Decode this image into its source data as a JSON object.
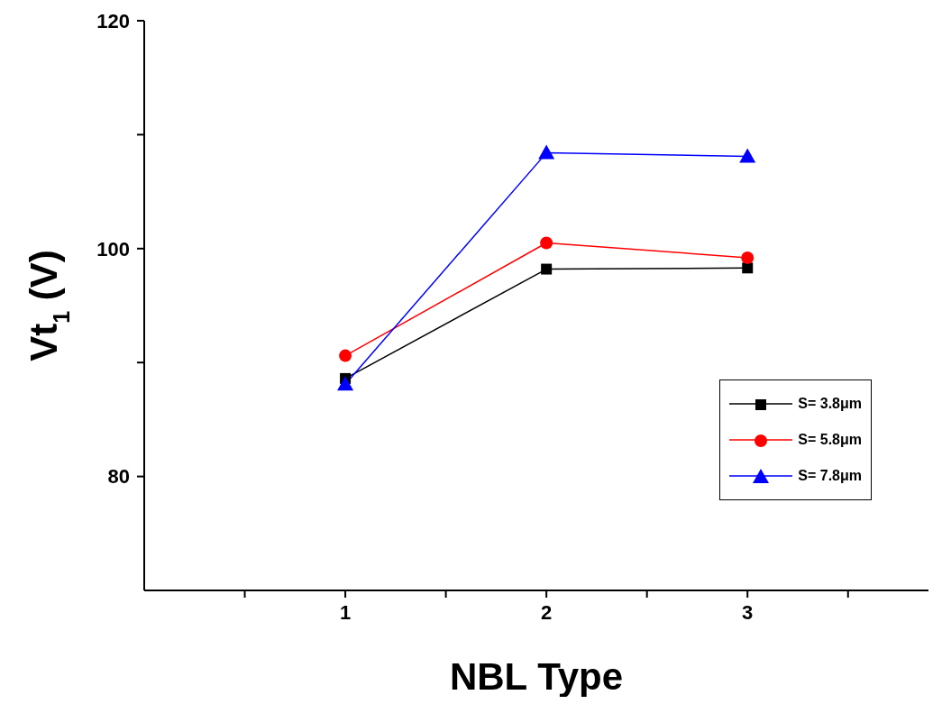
{
  "chart_data": {
    "type": "line",
    "xlabel": "NBL Type",
    "ylabel": "Vt$_{1}$ (V)",
    "x": [
      1,
      2,
      3
    ],
    "xlim": [
      0,
      3.9
    ],
    "xticks": [
      {
        "value": 0.5,
        "label": null
      },
      1,
      {
        "value": 1.5,
        "label": null
      },
      2,
      {
        "value": 2.5,
        "label": null
      },
      3,
      {
        "value": 3.5,
        "label": null
      }
    ],
    "ylim": [
      70,
      120
    ],
    "yticks": [
      80,
      {
        "value": 90,
        "label": null
      },
      100,
      {
        "value": 110,
        "label": null
      },
      120
    ],
    "grid": false,
    "legend": "right",
    "line_style": "solid",
    "series": [
      {
        "name": "S= 3.8μm",
        "color": "#000000",
        "marker": "square",
        "values": [
          88.6,
          98.2,
          98.3
        ]
      },
      {
        "name": "S= 5.8μm",
        "color": "#ff0000",
        "marker": "circle",
        "values": [
          90.6,
          100.5,
          99.2
        ]
      },
      {
        "name": "S= 7.8μm",
        "color": "#0000ff",
        "marker": "triangle",
        "values": [
          88.1,
          108.4,
          108.1
        ]
      }
    ]
  }
}
